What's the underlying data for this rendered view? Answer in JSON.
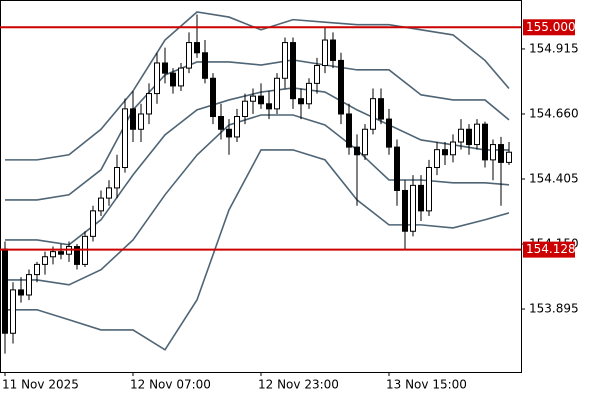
{
  "chart_data": {
    "type": "candlestick",
    "categories": [
      "11 Nov 2025",
      null,
      null,
      null,
      null,
      null,
      null,
      null,
      null,
      null,
      null,
      null,
      null,
      null,
      null,
      null,
      "12 Nov 07:00",
      null,
      null,
      null,
      null,
      null,
      null,
      null,
      null,
      null,
      null,
      null,
      null,
      null,
      null,
      null,
      "12 Nov 23:00",
      null,
      null,
      null,
      null,
      null,
      null,
      null,
      null,
      null,
      null,
      null,
      null,
      null,
      null,
      null,
      "13 Nov 15:00",
      null,
      null,
      null,
      null,
      null,
      null,
      null,
      null,
      null,
      null,
      null,
      null,
      null,
      null,
      null
    ],
    "open": [
      154.13,
      153.8,
      153.97,
      153.95,
      154.03,
      154.07,
      154.1,
      154.12,
      154.11,
      154.14,
      154.07,
      154.18,
      154.28,
      154.33,
      154.37,
      154.45,
      154.68,
      154.6,
      154.66,
      154.74,
      154.86,
      154.82,
      154.77,
      154.84,
      154.94,
      154.9,
      154.8,
      154.65,
      154.6,
      154.57,
      154.65,
      154.71,
      154.73,
      154.7,
      154.68,
      154.8,
      154.94,
      154.72,
      154.7,
      154.78,
      154.85,
      154.95,
      154.87,
      154.66,
      154.53,
      154.5,
      154.6,
      154.72,
      154.64,
      154.53,
      154.36,
      154.2,
      154.38,
      154.28,
      154.45,
      154.52,
      154.5,
      154.55,
      154.6,
      154.54,
      154.62,
      154.48,
      154.54,
      154.47
    ],
    "high": [
      154.16,
      154.0,
      154.02,
      154.05,
      154.08,
      154.12,
      154.14,
      154.15,
      154.16,
      154.15,
      154.2,
      154.3,
      154.36,
      154.4,
      154.5,
      154.72,
      154.75,
      154.7,
      154.78,
      154.9,
      154.92,
      154.84,
      154.86,
      154.98,
      155.05,
      154.95,
      154.82,
      154.7,
      154.64,
      154.68,
      154.74,
      154.76,
      154.78,
      154.75,
      154.82,
      154.96,
      154.96,
      154.76,
      154.8,
      154.88,
      155.0,
      154.98,
      154.9,
      154.7,
      154.58,
      154.62,
      154.76,
      154.76,
      154.68,
      154.56,
      154.4,
      154.42,
      154.42,
      154.48,
      154.55,
      154.55,
      154.58,
      154.64,
      154.62,
      154.64,
      154.63,
      154.56,
      154.57,
      154.55
    ],
    "low": [
      153.72,
      153.76,
      153.92,
      153.93,
      154.0,
      154.03,
      154.07,
      154.09,
      154.08,
      154.05,
      154.06,
      154.16,
      154.26,
      154.3,
      154.33,
      154.43,
      154.55,
      154.55,
      154.62,
      154.7,
      154.78,
      154.74,
      154.75,
      154.82,
      154.88,
      154.78,
      154.62,
      154.56,
      154.5,
      154.55,
      154.62,
      154.66,
      154.68,
      154.64,
      154.66,
      154.76,
      154.68,
      154.64,
      154.68,
      154.74,
      154.82,
      154.84,
      154.62,
      154.5,
      154.3,
      154.48,
      154.58,
      154.62,
      154.5,
      154.3,
      154.13,
      154.18,
      154.24,
      154.26,
      154.42,
      154.46,
      154.47,
      154.52,
      154.5,
      154.52,
      154.45,
      154.4,
      154.3,
      154.46
    ],
    "close": [
      153.8,
      153.97,
      153.95,
      154.03,
      154.07,
      154.1,
      154.12,
      154.11,
      154.14,
      154.07,
      154.18,
      154.28,
      154.33,
      154.37,
      154.45,
      154.68,
      154.6,
      154.66,
      154.74,
      154.86,
      154.82,
      154.77,
      154.84,
      154.94,
      154.9,
      154.8,
      154.65,
      154.6,
      154.57,
      154.65,
      154.71,
      154.73,
      154.7,
      154.68,
      154.8,
      154.94,
      154.72,
      154.7,
      154.78,
      154.85,
      154.95,
      154.87,
      154.66,
      154.53,
      154.5,
      154.6,
      154.72,
      154.64,
      154.53,
      154.36,
      154.2,
      154.38,
      154.28,
      154.45,
      154.52,
      154.5,
      154.55,
      154.6,
      154.54,
      154.62,
      154.48,
      154.54,
      154.47,
      154.51
    ],
    "bands": [
      {
        "color": "#4f6575",
        "x": [
          0,
          4,
          8,
          12,
          16,
          20,
          24,
          28,
          32,
          36,
          40,
          44,
          48,
          52,
          56,
          60,
          63
        ],
        "values": [
          154.48,
          154.48,
          154.5,
          154.6,
          154.75,
          154.95,
          155.06,
          155.04,
          154.99,
          155.03,
          155.02,
          155.01,
          155.01,
          154.99,
          154.97,
          154.87,
          154.76
        ]
      },
      {
        "color": "#4f6575",
        "x": [
          0,
          4,
          8,
          12,
          16,
          20,
          24,
          28,
          32,
          36,
          40,
          44,
          48,
          52,
          56,
          60,
          63
        ],
        "values": [
          154.323,
          154.323,
          154.343,
          154.441,
          154.676,
          154.813,
          154.864,
          154.864,
          154.852,
          154.872,
          154.852,
          154.833,
          154.833,
          154.735,
          154.715,
          154.715,
          154.637
        ]
      },
      {
        "color": "#4f6575",
        "x": [
          0,
          4,
          8,
          12,
          16,
          20,
          24,
          28,
          32,
          36,
          40,
          44,
          48,
          52,
          56,
          60,
          63
        ],
        "values": [
          154.166,
          154.166,
          154.147,
          154.245,
          154.421,
          154.578,
          154.676,
          154.715,
          154.746,
          154.762,
          154.746,
          154.676,
          154.617,
          154.558,
          154.539,
          154.519,
          154.519
        ]
      },
      {
        "color": "#4f6575",
        "x": [
          0,
          4,
          8,
          12,
          16,
          20,
          24,
          28,
          32,
          36,
          40,
          44,
          48,
          52,
          56,
          60,
          63
        ],
        "values": [
          154.009,
          154.009,
          153.99,
          154.049,
          154.166,
          154.343,
          154.499,
          154.617,
          154.656,
          154.656,
          154.617,
          154.519,
          154.401,
          154.401,
          154.39,
          154.39,
          154.382
        ]
      },
      {
        "color": "#4f6575",
        "x": [
          0,
          4,
          8,
          12,
          16,
          20,
          24,
          28,
          32,
          36,
          40,
          44,
          48,
          52,
          56,
          60,
          63
        ],
        "values": [
          153.892,
          153.892,
          153.853,
          153.813,
          153.813,
          153.735,
          153.931,
          154.284,
          154.519,
          154.519,
          154.48,
          154.323,
          154.225,
          154.225,
          154.213,
          154.245,
          154.272
        ]
      }
    ],
    "levels": [
      {
        "value": 155.0,
        "label": "155.000"
      },
      154.128
    ],
    "level_color": "#cc0000",
    "up_color": "#ffffff",
    "down_color": "#000000",
    "ylim": [
      153.648,
      155.107
    ],
    "yticks": [
      154.915,
      {
        "value": 154.66,
        "label": "154.660"
      },
      154.405,
      {
        "value": 154.15,
        "label": "154.150"
      },
      153.895
    ]
  }
}
